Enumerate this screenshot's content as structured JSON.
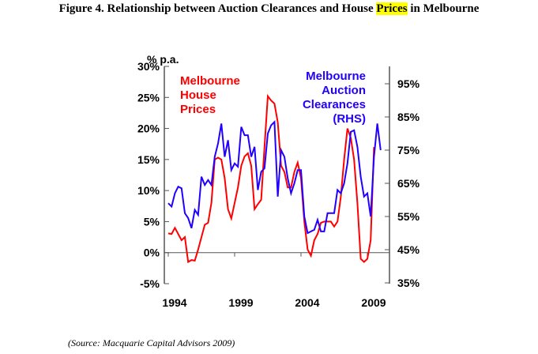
{
  "title_pre": "Figure 4.  Relationship between Auction Clearances and House ",
  "title_highlight": "Prices",
  "title_post": " in Melbourne",
  "source": "(Source: Macquarie Capital Advisors 2009)",
  "chart_data": {
    "type": "line",
    "title": "Figure 4. Relationship between Auction Clearances and House Prices in Melbourne",
    "left_axis_unit": "% p.a.",
    "ylim_left": [
      -5,
      30
    ],
    "yticks_left": [
      -5,
      0,
      5,
      10,
      15,
      20,
      25,
      30
    ],
    "ylim_right": [
      35,
      95
    ],
    "yticks_right": [
      35,
      45,
      55,
      65,
      75,
      85,
      95
    ],
    "xticks": [
      1994,
      1999,
      2004,
      2009
    ],
    "x_start": 1994,
    "x_step": 0.25,
    "series": [
      {
        "name": "Melbourne House Prices",
        "axis": "left",
        "color": "#ff0000",
        "label_lines": [
          "Melbourne",
          "House",
          "Prices"
        ],
        "values": [
          3.1,
          3,
          4,
          3,
          2,
          2.5,
          -1.5,
          -1.2,
          -1.3,
          0.5,
          2.5,
          4.5,
          4.8,
          8,
          15,
          15.3,
          15,
          12,
          7,
          5.5,
          8,
          10.5,
          14,
          15.5,
          16,
          14,
          7,
          7.8,
          8.5,
          17,
          25.2,
          24.5,
          24,
          21,
          14,
          13,
          10.5,
          10.5,
          13,
          14.5,
          12,
          5,
          0.5,
          -0.5,
          2,
          3,
          4.8,
          5,
          5,
          5,
          4.2,
          5,
          9,
          15,
          20,
          18.5,
          15,
          8,
          -1,
          -1.5,
          -1,
          2,
          17
        ]
      },
      {
        "name": "Melbourne Auction Clearances (RHS)",
        "axis": "right",
        "color": "#2200ff",
        "label_lines": [
          "Melbourne",
          "Auction",
          "Clearances",
          "(RHS)"
        ],
        "values": [
          59,
          58,
          62,
          64,
          63.5,
          56,
          54.5,
          51.5,
          57,
          55.5,
          67,
          64.5,
          66,
          64.5,
          73,
          77,
          83,
          73,
          78,
          69,
          71,
          70,
          82,
          79.5,
          79.5,
          73,
          76,
          63,
          68.5,
          69.5,
          80,
          82.5,
          83.5,
          61,
          75,
          73,
          66.5,
          62,
          65,
          69,
          69,
          55,
          50,
          50.5,
          51,
          54,
          50.5,
          50.5,
          56,
          56,
          56,
          63,
          62,
          65,
          71,
          80.5,
          81,
          76,
          67,
          61,
          62,
          55,
          73,
          83,
          75
        ]
      }
    ]
  }
}
